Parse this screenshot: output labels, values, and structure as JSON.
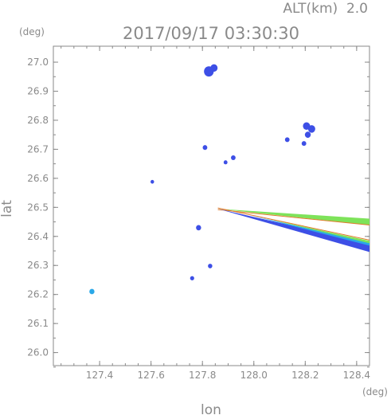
{
  "header": {
    "altitude": "ALT(km)  2.0",
    "timestamp": "2017/09/17 03:30:30"
  },
  "chart_data": {
    "type": "scatter",
    "title": "2017/09/17 03:30:30",
    "xlabel": "lon",
    "ylabel": "lat",
    "x_unit": "(deg)",
    "y_unit": "(deg)",
    "xlim": [
      127.22,
      128.45
    ],
    "ylim": [
      25.955,
      27.055
    ],
    "x_ticks": [
      "127.4",
      "127.6",
      "127.8",
      "128.0",
      "128.2",
      "128.4"
    ],
    "y_ticks": [
      "26.0",
      "26.1",
      "26.2",
      "26.3",
      "26.4",
      "26.5",
      "26.6",
      "26.7",
      "26.8",
      "26.9",
      "27.0"
    ],
    "grid": false,
    "colors": {
      "echo_blue": "#3d4fe6",
      "echo_cyan": "#2aa8e8",
      "echo_green": "#7ee35a",
      "echo_orange": "#e07a2a",
      "axis": "#8a8a8a"
    },
    "echoes": [
      {
        "lon": 127.825,
        "lat": 26.968,
        "size": 3
      },
      {
        "lon": 127.845,
        "lat": 26.98,
        "size": 2
      },
      {
        "lon": 128.205,
        "lat": 26.78,
        "size": 2
      },
      {
        "lon": 128.225,
        "lat": 26.77,
        "size": 2
      },
      {
        "lon": 128.21,
        "lat": 26.75,
        "size": 1.5
      },
      {
        "lon": 128.13,
        "lat": 26.733,
        "size": 1
      },
      {
        "lon": 128.195,
        "lat": 26.72,
        "size": 1
      },
      {
        "lon": 127.81,
        "lat": 26.706,
        "size": 1
      },
      {
        "lon": 127.92,
        "lat": 26.671,
        "size": 1
      },
      {
        "lon": 127.89,
        "lat": 26.655,
        "size": 0.7
      },
      {
        "lon": 127.605,
        "lat": 26.588,
        "size": 0.6
      },
      {
        "lon": 127.785,
        "lat": 26.43,
        "size": 1.2
      },
      {
        "lon": 127.83,
        "lat": 26.298,
        "size": 0.9
      },
      {
        "lon": 127.76,
        "lat": 26.256,
        "size": 0.8
      },
      {
        "lon": 127.37,
        "lat": 26.21,
        "size": 1.2
      }
    ],
    "bands": [
      {
        "name": "upper",
        "from": [
          127.86,
          26.495
        ],
        "to": [
          128.45,
          26.45
        ],
        "color": "green"
      },
      {
        "name": "lower",
        "from": [
          127.86,
          26.495
        ],
        "to": [
          128.45,
          26.36
        ],
        "color": "blue"
      }
    ]
  }
}
